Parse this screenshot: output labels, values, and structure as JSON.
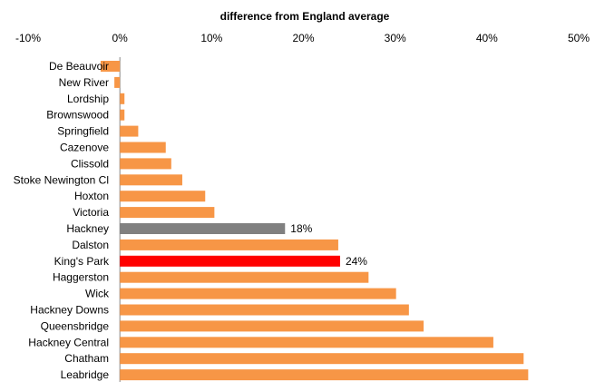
{
  "chart_data": {
    "type": "bar",
    "orientation": "horizontal",
    "title": "difference from England  average",
    "xlim": [
      -10,
      50
    ],
    "x_ticks": [
      -10,
      0,
      10,
      20,
      30,
      40,
      50
    ],
    "x_tick_labels": [
      "-10%",
      "0%",
      "10%",
      "20%",
      "30%",
      "40%",
      "50%"
    ],
    "axis_position": "top",
    "grid": false,
    "categories": [
      "De Beauvoir",
      "New River",
      "Lordship",
      "Brownswood",
      "Springfield",
      "Cazenove",
      "Clissold",
      "Stoke Newington Cl",
      "Hoxton",
      "Victoria",
      "Hackney",
      "Dalston",
      "King's Park",
      "Haggerston",
      "Wick",
      "Hackney Downs",
      "Queensbridge",
      "Hackney Central",
      "Chatham",
      "Leabridge"
    ],
    "values": [
      -2.1,
      -0.6,
      0.5,
      0.5,
      2.0,
      5.0,
      5.6,
      6.8,
      9.3,
      10.3,
      18.0,
      23.8,
      24.0,
      27.1,
      30.1,
      31.5,
      33.1,
      40.7,
      44.0,
      44.5
    ],
    "colors": {
      "default": "#F79646",
      "highlight_hackney": "#808080",
      "highlight_kings_park": "#FF0000"
    },
    "bar_colors": [
      "default",
      "default",
      "default",
      "default",
      "default",
      "default",
      "default",
      "default",
      "default",
      "default",
      "highlight_hackney",
      "default",
      "highlight_kings_park",
      "default",
      "default",
      "default",
      "default",
      "default",
      "default",
      "default"
    ],
    "data_labels": [
      {
        "category": "Hackney",
        "text": "18%"
      },
      {
        "category": "King's Park",
        "text": "24%"
      }
    ]
  }
}
